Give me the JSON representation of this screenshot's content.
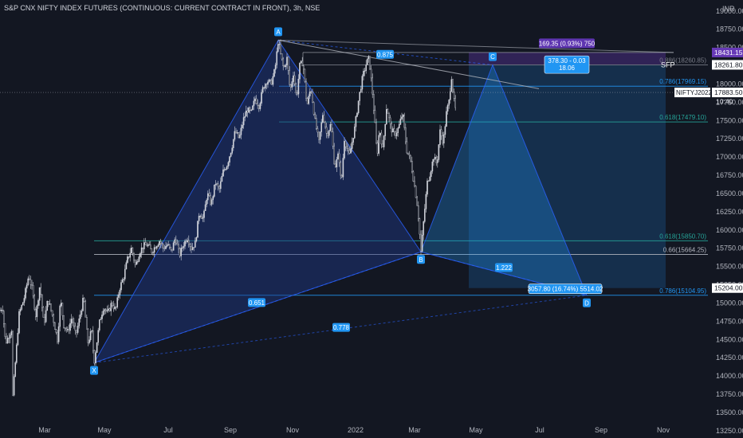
{
  "header": {
    "title": "S&P CNX NIFTY INDEX FUTURES (CONTINUOUS: CURRENT CONTRACT IN FRONT), 3h, NSE",
    "currency": "INR"
  },
  "colors": {
    "background": "#131722",
    "candle": "#d1d4dc",
    "pattern_line": "#2962ff",
    "pattern_fill": "#1e3a8a",
    "fib_blue": "#2196f3",
    "fib_teal": "#26a69a",
    "purple": "#673ab7",
    "target_box": "#1e88e5",
    "axis_text": "#b2b5be"
  },
  "chart_data": {
    "type": "candlestick",
    "symbol": "NIFTYJ2022",
    "interval": "3h",
    "x_tick_labels": [
      "Mar",
      "May",
      "Jul",
      "Sep",
      "Nov",
      "2022",
      "Mar",
      "May",
      "Jul",
      "Sep",
      "Nov"
    ],
    "y_tick_labels": [
      "19000.00",
      "18750.00",
      "18500.00",
      "18000.00",
      "17750.00",
      "17500.00",
      "17250.00",
      "17000.00",
      "16750.00",
      "16500.00",
      "16250.00",
      "16000.00",
      "15750.00",
      "15500.00",
      "15250.00",
      "15000.00",
      "14750.00",
      "14500.00",
      "14250.00",
      "14000.00",
      "13750.00",
      "13500.00",
      "13250.00"
    ],
    "ylim": [
      13150,
      19150
    ],
    "price_path": [
      [
        0,
        14900
      ],
      [
        3,
        14950
      ],
      [
        7,
        14450
      ],
      [
        11,
        14550
      ],
      [
        15,
        14650
      ],
      [
        16,
        13720
      ],
      [
        19,
        14150
      ],
      [
        24,
        14850
      ],
      [
        30,
        15050
      ],
      [
        36,
        15380
      ],
      [
        40,
        15200
      ],
      [
        45,
        14820
      ],
      [
        50,
        15250
      ],
      [
        55,
        14700
      ],
      [
        60,
        15050
      ],
      [
        66,
        14820
      ],
      [
        72,
        14500
      ],
      [
        76,
        15050
      ],
      [
        80,
        14700
      ],
      [
        85,
        14600
      ],
      [
        90,
        14800
      ],
      [
        95,
        14550
      ],
      [
        100,
        14800
      ],
      [
        105,
        15080
      ],
      [
        110,
        14450
      ],
      [
        115,
        14620
      ],
      [
        118,
        14180
      ],
      [
        125,
        14750
      ],
      [
        130,
        14950
      ],
      [
        135,
        14850
      ],
      [
        140,
        15000
      ],
      [
        145,
        14900
      ],
      [
        150,
        15200
      ],
      [
        155,
        15350
      ],
      [
        160,
        15600
      ],
      [
        165,
        15750
      ],
      [
        170,
        15500
      ],
      [
        175,
        15700
      ],
      [
        180,
        15780
      ],
      [
        185,
        15800
      ],
      [
        190,
        15700
      ],
      [
        195,
        15780
      ],
      [
        200,
        15850
      ],
      [
        205,
        15750
      ],
      [
        210,
        15800
      ],
      [
        215,
        15700
      ],
      [
        220,
        15900
      ],
      [
        225,
        15650
      ],
      [
        230,
        15800
      ],
      [
        235,
        15900
      ],
      [
        240,
        15750
      ],
      [
        245,
        15820
      ],
      [
        250,
        16250
      ],
      [
        255,
        16150
      ],
      [
        260,
        16500
      ],
      [
        265,
        16350
      ],
      [
        270,
        16650
      ],
      [
        275,
        16550
      ],
      [
        280,
        16800
      ],
      [
        285,
        16900
      ],
      [
        290,
        17100
      ],
      [
        295,
        17350
      ],
      [
        300,
        17250
      ],
      [
        305,
        17500
      ],
      [
        310,
        17650
      ],
      [
        315,
        17600
      ],
      [
        320,
        17800
      ],
      [
        325,
        17700
      ],
      [
        330,
        17950
      ],
      [
        335,
        18050
      ],
      [
        340,
        18000
      ],
      [
        345,
        18200
      ],
      [
        349,
        18600
      ],
      [
        352,
        18400
      ],
      [
        356,
        18200
      ],
      [
        360,
        18350
      ],
      [
        364,
        17900
      ],
      [
        368,
        18150
      ],
      [
        372,
        17800
      ],
      [
        376,
        18250
      ],
      [
        380,
        18300
      ],
      [
        385,
        17700
      ],
      [
        390,
        17950
      ],
      [
        395,
        17500
      ],
      [
        400,
        17200
      ],
      [
        405,
        17600
      ],
      [
        410,
        17300
      ],
      [
        415,
        17450
      ],
      [
        420,
        16850
      ],
      [
        425,
        17050
      ],
      [
        428,
        16600
      ],
      [
        432,
        17250
      ],
      [
        438,
        17000
      ],
      [
        445,
        17400
      ],
      [
        450,
        17800
      ],
      [
        455,
        18100
      ],
      [
        460,
        18300
      ],
      [
        463,
        18350
      ],
      [
        467,
        17900
      ],
      [
        470,
        17500
      ],
      [
        473,
        17000
      ],
      [
        476,
        17400
      ],
      [
        480,
        17100
      ],
      [
        485,
        17700
      ],
      [
        490,
        17400
      ],
      [
        495,
        17300
      ],
      [
        500,
        17400
      ],
      [
        505,
        17600
      ],
      [
        510,
        17100
      ],
      [
        515,
        16950
      ],
      [
        520,
        16600
      ],
      [
        524,
        16300
      ],
      [
        528,
        15700
      ],
      [
        532,
        16200
      ],
      [
        536,
        16650
      ],
      [
        540,
        16800
      ],
      [
        544,
        17000
      ],
      [
        548,
        16900
      ],
      [
        552,
        17350
      ],
      [
        556,
        17200
      ],
      [
        560,
        17600
      ],
      [
        564,
        17800
      ],
      [
        566,
        18150
      ],
      [
        569,
        17800
      ],
      [
        572,
        17600
      ]
    ],
    "pattern": {
      "name": "XABCD",
      "points": [
        {
          "label": "X",
          "x": 118,
          "price": 14180
        },
        {
          "label": "A",
          "x": 349,
          "price": 18600
        },
        {
          "label": "B",
          "x": 528,
          "price": 15700
        },
        {
          "label": "C",
          "x": 618,
          "price": 18260
        },
        {
          "label": "D",
          "x": 736,
          "price": 15104.95
        }
      ],
      "ratios": [
        {
          "label": "0.875",
          "x": 483,
          "price": 18400
        },
        {
          "label": "0.651",
          "x": 322,
          "price": 15000
        },
        {
          "label": "0.778",
          "x": 428,
          "price": 14660
        },
        {
          "label": "1.222",
          "x": 632,
          "price": 15480
        }
      ]
    },
    "fib_levels": [
      {
        "label": "0.786(17969.15)",
        "price": 17969.15,
        "x0": 350,
        "color": "#2196f3"
      },
      {
        "label": "0.618(17479.10)",
        "price": 17479.1,
        "x0": 350,
        "color": "#26a69a"
      },
      {
        "label": "0.618(15850.70)",
        "price": 15850.7,
        "x0": 118,
        "color": "#26a69a"
      },
      {
        "label": "0.66(15664.25)",
        "price": 15664.25,
        "x0": 118,
        "color": "#b2b5be"
      },
      {
        "label": "0.786(15104.95)",
        "price": 15104.95,
        "x0": 118,
        "color": "#2196f3"
      },
      {
        "label": "0.886(18260.85)",
        "price": 18260.85,
        "x0": 380,
        "color": "#787b86"
      }
    ],
    "boxes": [
      {
        "kind": "purple",
        "x0": 588,
        "x1": 835,
        "p0": 18431.15,
        "p1": 18261.8
      },
      {
        "kind": "target",
        "x0": 588,
        "x1": 835,
        "p0": 18261.8,
        "p1": 15204
      }
    ],
    "annotations": {
      "top_measure": "169.35 (0.93%) 750",
      "c_measure_line1": "378.30 - 0.03",
      "c_measure_line2": "18.06",
      "d_measure": "3057.80 (16.74%) 5514.02",
      "sfp": "SFP"
    },
    "price_tags": [
      {
        "text": "18431.15",
        "price": 18431.15,
        "style": "purple"
      },
      {
        "text": "18261.80",
        "price": 18261.8,
        "style": "white"
      },
      {
        "text": "NIFTYJ2022",
        "price": 17883.5,
        "style": "white-left"
      },
      {
        "text": "17883.50",
        "price": 17883.5,
        "style": "white"
      },
      {
        "text": "10:40",
        "price": 17760,
        "style": "plain"
      },
      {
        "text": "15204.00",
        "price": 15204,
        "style": "white"
      }
    ]
  }
}
